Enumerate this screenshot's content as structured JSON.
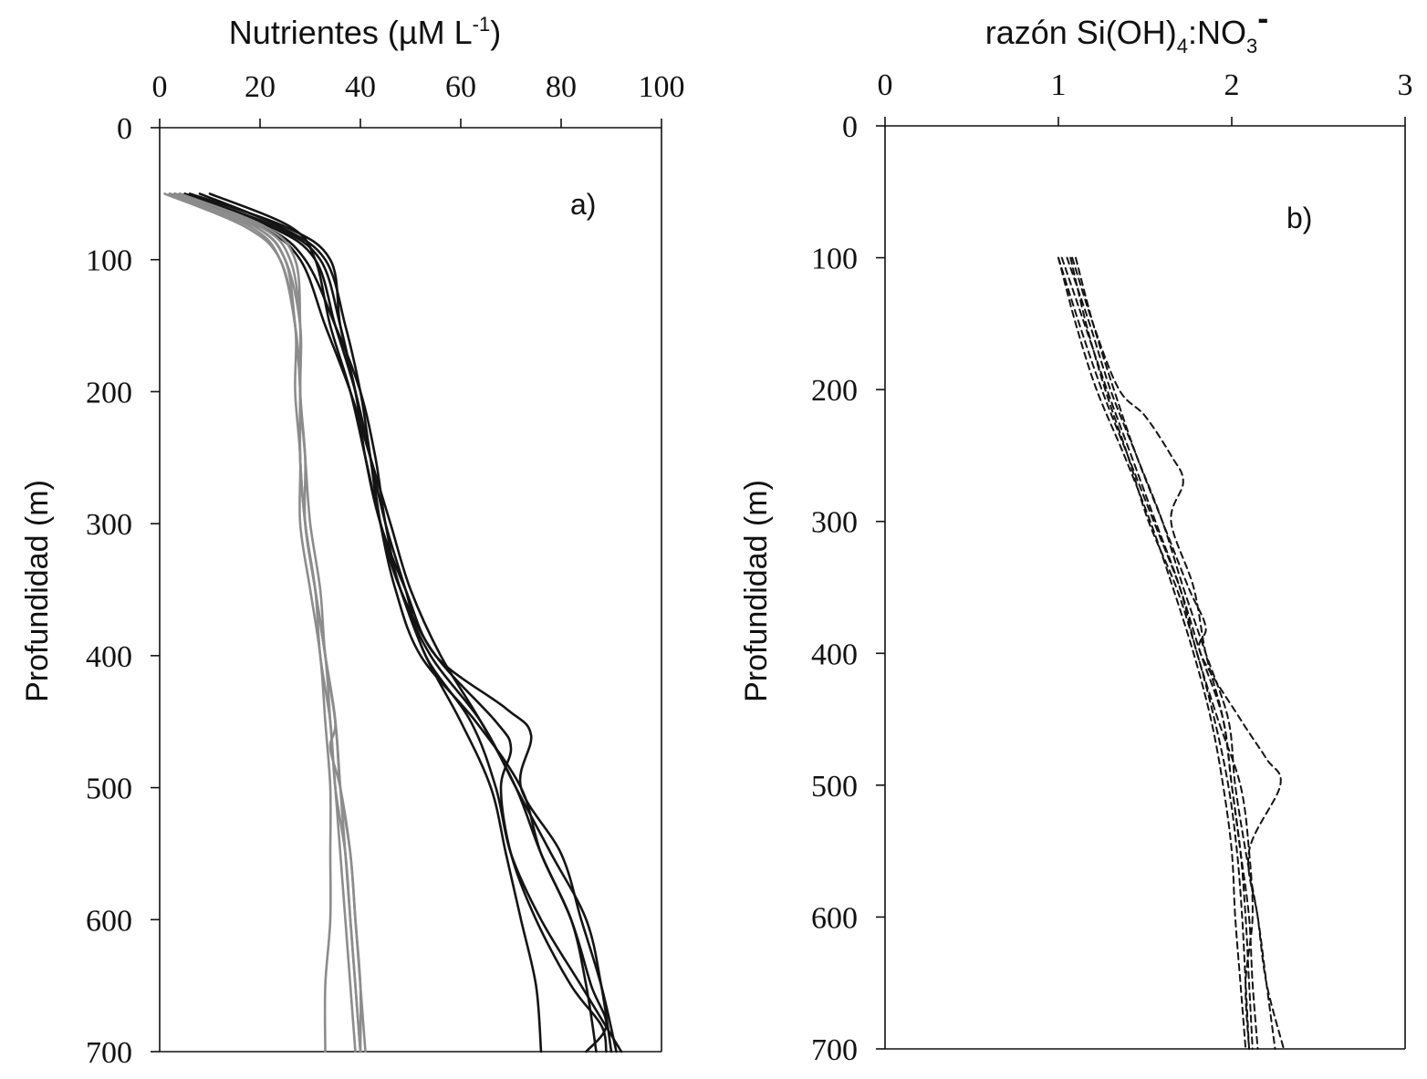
{
  "chart_data": [
    {
      "type": "line",
      "panel_label": "a)",
      "title": "Nutrientes (µM L",
      "title_superscript": "-1",
      "title_suffix": ")",
      "xlabel_position": "top",
      "ylabel": "Profundidad (m)",
      "xlim": [
        0,
        100
      ],
      "ylim": [
        0,
        700
      ],
      "y_inverted": true,
      "xticks": [
        "0",
        "20",
        "40",
        "60",
        "80",
        "100"
      ],
      "yticks": [
        "0",
        "100",
        "200",
        "300",
        "400",
        "500",
        "600",
        "700"
      ],
      "grid": false,
      "colors": {
        "black_series": "#141414",
        "gray_series": "#8c8c8c"
      },
      "series": [
        {
          "name": "black-1",
          "color": "#141414",
          "depth": [
            50,
            75,
            100,
            150,
            200,
            250,
            300,
            350,
            400,
            450,
            500,
            550,
            600,
            650,
            700
          ],
          "values": [
            3,
            22,
            31,
            35,
            39,
            42,
            45,
            49,
            53,
            62,
            67,
            70,
            76,
            84,
            92
          ]
        },
        {
          "name": "black-2",
          "color": "#141414",
          "depth": [
            50,
            75,
            100,
            150,
            200,
            250,
            300,
            350,
            400,
            450,
            500,
            550,
            600,
            650,
            700
          ],
          "values": [
            5,
            23,
            32,
            36,
            39,
            42,
            44,
            47,
            52,
            63,
            72,
            76,
            82,
            85,
            87
          ]
        },
        {
          "name": "black-3",
          "color": "#141414",
          "depth": [
            50,
            75,
            100,
            150,
            200,
            250,
            300,
            350,
            400,
            450,
            470,
            500,
            550,
            600,
            650,
            680,
            700
          ],
          "values": [
            8,
            24,
            33,
            37,
            40,
            42,
            44,
            48,
            55,
            67,
            70,
            68,
            70,
            75,
            82,
            88,
            89
          ]
        },
        {
          "name": "black-4",
          "color": "#141414",
          "depth": [
            50,
            75,
            100,
            150,
            200,
            250,
            300,
            350,
            400,
            450,
            500,
            550,
            600,
            650,
            700
          ],
          "values": [
            4,
            21,
            29,
            35,
            40,
            43,
            45,
            48,
            54,
            64,
            71,
            78,
            85,
            88,
            90
          ]
        },
        {
          "name": "black-5",
          "color": "#141414",
          "depth": [
            50,
            75,
            100,
            150,
            200,
            250,
            300,
            350,
            400,
            440,
            460,
            500,
            550,
            600,
            650,
            700
          ],
          "values": [
            6,
            25,
            34,
            36,
            39,
            41,
            44,
            49,
            55,
            69,
            74,
            72,
            80,
            84,
            88,
            91
          ]
        },
        {
          "name": "black-6",
          "color": "#141414",
          "depth": [
            50,
            75,
            100,
            150,
            200,
            250,
            300,
            350,
            400,
            450,
            500,
            550,
            600,
            650,
            700
          ],
          "values": [
            10,
            26,
            31,
            34,
            38,
            41,
            44,
            48,
            53,
            60,
            66,
            69,
            72,
            75,
            76
          ]
        },
        {
          "name": "black-7",
          "color": "#141414",
          "depth": [
            50,
            75,
            100,
            150,
            200,
            250,
            300,
            350,
            400,
            450,
            500,
            550,
            600,
            650,
            680,
            700
          ],
          "values": [
            2,
            20,
            28,
            33,
            38,
            42,
            46,
            50,
            56,
            64,
            71,
            76,
            82,
            86,
            89,
            85
          ]
        },
        {
          "name": "gray-1",
          "color": "#8c8c8c",
          "depth": [
            50,
            75,
            100,
            150,
            200,
            250,
            300,
            350,
            400,
            450,
            500,
            550,
            600,
            650,
            700
          ],
          "values": [
            2,
            18,
            24,
            27,
            28,
            28,
            29,
            31,
            33,
            34,
            35,
            36,
            37,
            38,
            39
          ]
        },
        {
          "name": "gray-2",
          "color": "#8c8c8c",
          "depth": [
            50,
            75,
            100,
            150,
            200,
            250,
            300,
            350,
            400,
            450,
            500,
            550,
            600,
            650,
            700
          ],
          "values": [
            3,
            19,
            25,
            28,
            28,
            29,
            29,
            31,
            33,
            35,
            36,
            37,
            38,
            39,
            40
          ]
        },
        {
          "name": "gray-3",
          "color": "#8c8c8c",
          "depth": [
            50,
            75,
            100,
            150,
            200,
            250,
            300,
            350,
            400,
            450,
            500,
            550,
            600,
            650,
            700
          ],
          "values": [
            1,
            17,
            24,
            27,
            27,
            28,
            28,
            30,
            32,
            33,
            34,
            34,
            34,
            33,
            33
          ]
        },
        {
          "name": "gray-4",
          "color": "#8c8c8c",
          "depth": [
            50,
            75,
            100,
            150,
            200,
            250,
            300,
            350,
            400,
            450,
            470,
            500,
            550,
            600,
            650,
            700
          ],
          "values": [
            2,
            20,
            26,
            28,
            28,
            28,
            29,
            31,
            33,
            35,
            34,
            36,
            38,
            39,
            40,
            41
          ]
        },
        {
          "name": "gray-5",
          "color": "#8c8c8c",
          "depth": [
            50,
            75,
            100,
            150,
            200,
            250,
            300,
            350,
            400,
            450,
            500,
            550,
            600,
            650,
            700
          ],
          "values": [
            4,
            21,
            27,
            28,
            28,
            29,
            30,
            32,
            33,
            35,
            36,
            38,
            39,
            40,
            40
          ]
        },
        {
          "name": "gray-6",
          "color": "#8c8c8c",
          "depth": [
            50,
            75,
            100,
            150,
            200,
            250,
            300,
            350,
            400,
            450,
            500,
            550,
            600,
            650,
            700
          ],
          "values": [
            2,
            19,
            25,
            27,
            28,
            28,
            29,
            31,
            32,
            34,
            35,
            37,
            38,
            39,
            40
          ]
        }
      ]
    },
    {
      "type": "line",
      "panel_label": "b)",
      "title": "razón Si(OH)",
      "title_sub1": "4",
      "title_mid": ":NO",
      "title_sub2": "3",
      "title_sup": "-",
      "xlabel_position": "top",
      "ylabel": "Profundidad (m)",
      "xlim": [
        0,
        3
      ],
      "ylim": [
        0,
        700
      ],
      "y_inverted": true,
      "xticks": [
        "0",
        "1",
        "2",
        "3"
      ],
      "yticks": [
        "0",
        "100",
        "200",
        "300",
        "400",
        "500",
        "600",
        "700"
      ],
      "grid": false,
      "line_style": "dashed",
      "colors": {
        "series": "#141414"
      },
      "series": [
        {
          "name": "ratio-1",
          "depth": [
            100,
            150,
            200,
            250,
            300,
            350,
            400,
            450,
            500,
            550,
            600,
            650,
            700
          ],
          "values": [
            1.0,
            1.12,
            1.25,
            1.4,
            1.55,
            1.7,
            1.82,
            1.95,
            2.0,
            2.05,
            2.08,
            2.1,
            2.12
          ]
        },
        {
          "name": "ratio-2",
          "depth": [
            100,
            150,
            200,
            250,
            300,
            350,
            400,
            450,
            500,
            550,
            600,
            650,
            700
          ],
          "values": [
            1.05,
            1.18,
            1.3,
            1.45,
            1.6,
            1.72,
            1.85,
            1.98,
            2.02,
            2.08,
            2.15,
            2.2,
            2.25
          ]
        },
        {
          "name": "ratio-3",
          "depth": [
            100,
            150,
            200,
            220,
            250,
            270,
            300,
            350,
            400,
            450,
            500,
            550,
            600,
            650,
            700
          ],
          "values": [
            1.08,
            1.2,
            1.35,
            1.5,
            1.65,
            1.72,
            1.65,
            1.78,
            1.85,
            1.95,
            2.0,
            2.05,
            2.1,
            2.12,
            2.15
          ]
        },
        {
          "name": "ratio-4",
          "depth": [
            100,
            150,
            200,
            250,
            300,
            350,
            380,
            400,
            450,
            480,
            500,
            550,
            600,
            650,
            700
          ],
          "values": [
            1.1,
            1.2,
            1.32,
            1.45,
            1.6,
            1.75,
            1.85,
            1.82,
            2.05,
            2.2,
            2.28,
            2.1,
            2.15,
            2.2,
            2.3
          ]
        },
        {
          "name": "ratio-5",
          "depth": [
            100,
            150,
            200,
            250,
            300,
            350,
            400,
            450,
            500,
            550,
            600,
            650,
            700
          ],
          "values": [
            1.02,
            1.15,
            1.28,
            1.42,
            1.56,
            1.7,
            1.8,
            1.92,
            2.05,
            2.1,
            2.12,
            2.08,
            2.1
          ]
        },
        {
          "name": "ratio-6",
          "depth": [
            100,
            150,
            200,
            250,
            300,
            350,
            400,
            450,
            500,
            550,
            600,
            650,
            700
          ],
          "values": [
            1.07,
            1.16,
            1.27,
            1.4,
            1.52,
            1.68,
            1.8,
            1.9,
            1.98,
            2.03,
            2.06,
            2.08,
            2.1
          ]
        },
        {
          "name": "ratio-7",
          "depth": [
            100,
            150,
            200,
            250,
            300,
            350,
            400,
            450,
            500,
            550,
            600,
            650,
            700
          ],
          "values": [
            1.0,
            1.1,
            1.22,
            1.38,
            1.53,
            1.66,
            1.78,
            1.88,
            1.95,
            2.0,
            2.02,
            2.05,
            2.08
          ]
        }
      ]
    }
  ]
}
